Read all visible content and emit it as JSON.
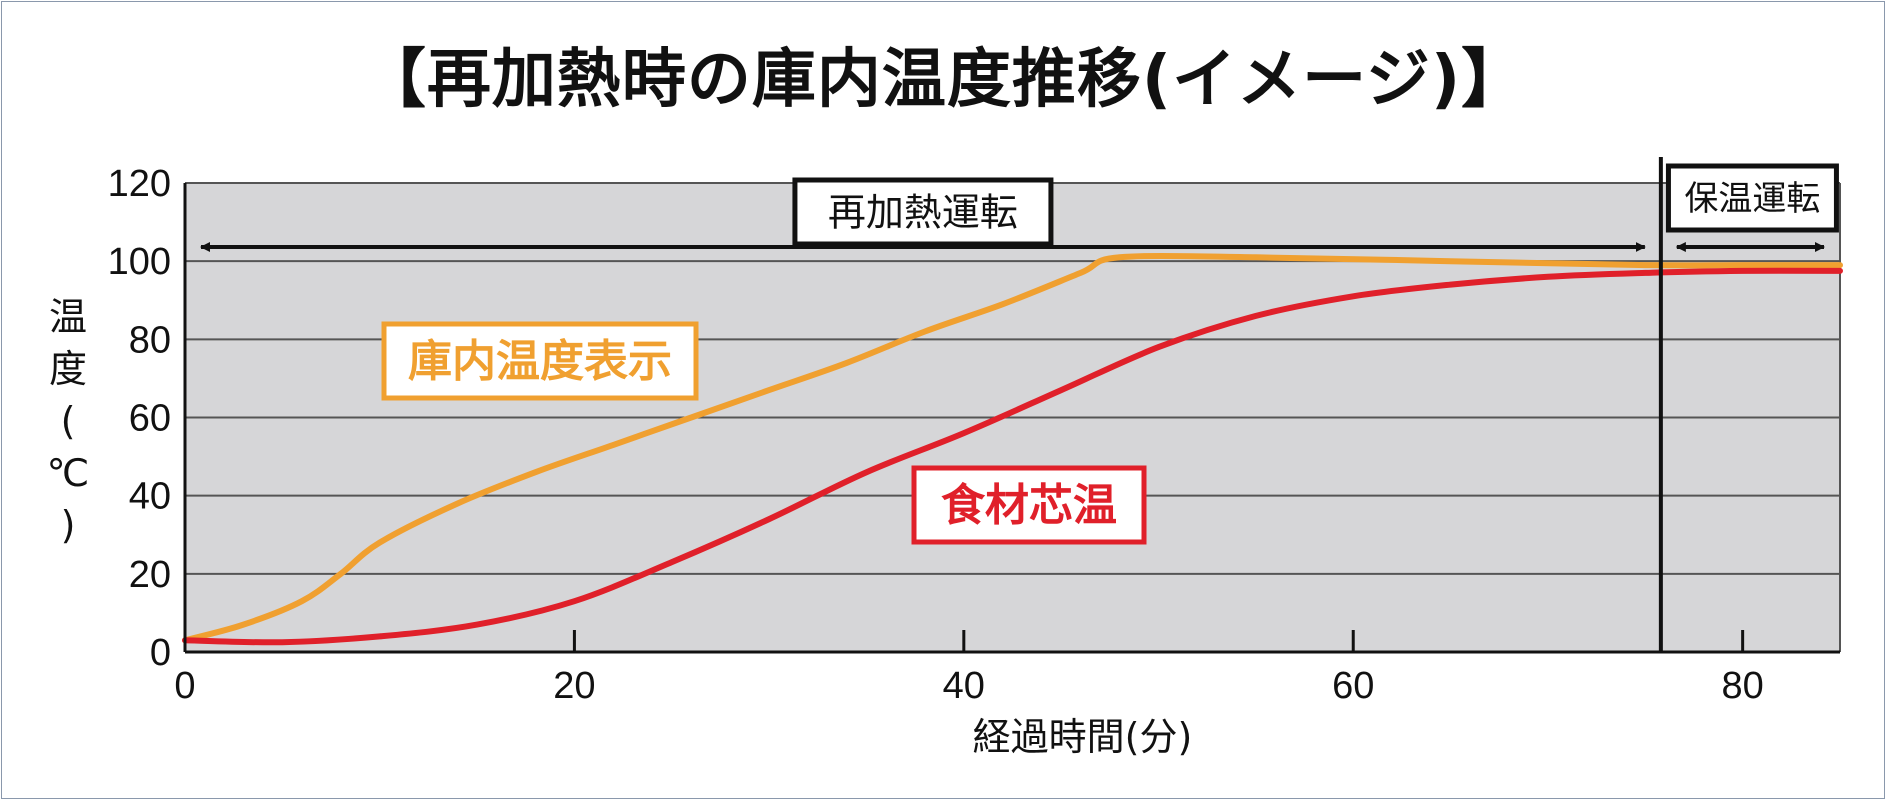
{
  "chart_data": {
    "type": "line",
    "title": "【再加熱時の庫内温度推移(イメージ)】",
    "xlabel": "経過時間(分)",
    "ylabel": "温度(℃)",
    "xlim": [
      0,
      85
    ],
    "ylim": [
      0,
      120
    ],
    "x_ticks": [
      0,
      20,
      40,
      60,
      80
    ],
    "y_ticks": [
      0,
      20,
      40,
      60,
      80,
      100,
      120
    ],
    "grid": true,
    "series": [
      {
        "name": "庫内温度表示",
        "color": "#f0a030",
        "points": [
          [
            0,
            3
          ],
          [
            3,
            7
          ],
          [
            6,
            13
          ],
          [
            8,
            20
          ],
          [
            10,
            28
          ],
          [
            14,
            38
          ],
          [
            18,
            46
          ],
          [
            22,
            53
          ],
          [
            26,
            60
          ],
          [
            30,
            67
          ],
          [
            34,
            74
          ],
          [
            38,
            82
          ],
          [
            42,
            89
          ],
          [
            46,
            97
          ],
          [
            48,
            101
          ],
          [
            55,
            101
          ],
          [
            65,
            100
          ],
          [
            75,
            99
          ],
          [
            80,
            99
          ],
          [
            85,
            99
          ]
        ]
      },
      {
        "name": "食材芯温",
        "color": "#e0202a",
        "points": [
          [
            0,
            3
          ],
          [
            5,
            2.5
          ],
          [
            10,
            4
          ],
          [
            15,
            7
          ],
          [
            20,
            13
          ],
          [
            25,
            23
          ],
          [
            30,
            34
          ],
          [
            35,
            46
          ],
          [
            40,
            56
          ],
          [
            45,
            67
          ],
          [
            50,
            78
          ],
          [
            55,
            86
          ],
          [
            60,
            91
          ],
          [
            65,
            94
          ],
          [
            70,
            96
          ],
          [
            75,
            97
          ],
          [
            80,
            97.5
          ],
          [
            85,
            97.5
          ]
        ]
      }
    ],
    "regions": [
      {
        "label": "再加熱運転",
        "from": 0,
        "to": 75.8
      },
      {
        "label": "保温運転",
        "from": 75.8,
        "to": 85
      }
    ]
  }
}
